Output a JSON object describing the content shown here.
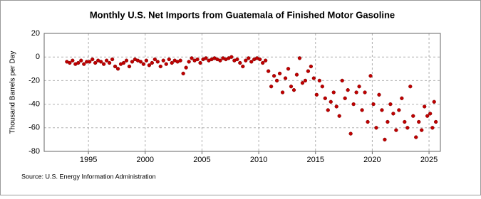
{
  "chart_data": {
    "type": "scatter",
    "title": "Monthly U.S. Net Imports from Guatemala of Finished Motor Gasoline",
    "y_label": "Thousand Barrels per Day",
    "source": "Source: U.S. Energy Information Administration",
    "series": [
      {
        "name": "Net Imports",
        "color": "#c00000",
        "x": [
          1993.1,
          1993.35,
          1993.6,
          1993.85,
          1994.1,
          1994.35,
          1994.6,
          1994.85,
          1995.1,
          1995.35,
          1995.6,
          1995.85,
          1996.1,
          1996.35,
          1996.6,
          1996.85,
          1997.1,
          1997.35,
          1997.6,
          1997.85,
          1998.1,
          1998.35,
          1998.6,
          1998.85,
          1999.1,
          1999.35,
          1999.6,
          1999.85,
          2000.1,
          2000.35,
          2000.6,
          2000.85,
          2001.1,
          2001.35,
          2001.6,
          2001.85,
          2002.1,
          2002.35,
          2002.6,
          2002.85,
          2003.1,
          2003.35,
          2003.6,
          2003.85,
          2004.1,
          2004.35,
          2004.6,
          2004.85,
          2005.1,
          2005.35,
          2005.6,
          2005.85,
          2006.1,
          2006.35,
          2006.6,
          2006.85,
          2007.1,
          2007.35,
          2007.6,
          2007.85,
          2008.1,
          2008.35,
          2008.6,
          2008.85,
          2009.1,
          2009.35,
          2009.6,
          2009.85,
          2010.1,
          2010.35,
          2010.6,
          2010.85,
          2011.1,
          2011.35,
          2011.6,
          2011.85,
          2012.1,
          2012.35,
          2012.6,
          2012.85,
          2013.1,
          2013.35,
          2013.6,
          2013.85,
          2014.1,
          2014.35,
          2014.6,
          2014.85,
          2015.1,
          2015.35,
          2015.6,
          2015.85,
          2016.1,
          2016.35,
          2016.6,
          2016.85,
          2017.1,
          2017.35,
          2017.6,
          2017.85,
          2018.1,
          2018.35,
          2018.6,
          2018.85,
          2019.1,
          2019.35,
          2019.6,
          2019.85,
          2020.1,
          2020.35,
          2020.6,
          2020.85,
          2021.1,
          2021.35,
          2021.6,
          2021.85,
          2022.1,
          2022.35,
          2022.6,
          2022.85,
          2023.1,
          2023.35,
          2023.6,
          2023.85,
          2024.1,
          2024.35,
          2024.6,
          2024.85,
          2025.1,
          2025.3,
          2025.45,
          2025.6
        ],
        "values": [
          -4,
          -5,
          -3,
          -6,
          -5,
          -3,
          -6,
          -4,
          -4,
          -2,
          -5,
          -3,
          -4,
          -6,
          -3,
          -5,
          -2,
          -8,
          -10,
          -6,
          -5,
          -3,
          -8,
          -4,
          -2,
          -3,
          -4,
          -6,
          -3,
          -7,
          -5,
          -2,
          -4,
          -8,
          -3,
          -6,
          -2,
          -5,
          -3,
          -4,
          -3,
          -14,
          -9,
          -4,
          -1,
          -3,
          -2,
          -5,
          -2,
          -1,
          -3,
          -2,
          -1,
          -2,
          -3,
          -1,
          -2,
          -1,
          0,
          -3,
          -2,
          -5,
          -8,
          -3,
          -1,
          -4,
          -2,
          -1,
          -2,
          -5,
          -3,
          -12,
          -25,
          -16,
          -20,
          -14,
          -30,
          -18,
          -10,
          -25,
          -28,
          -15,
          -1,
          -22,
          -20,
          -12,
          -8,
          -18,
          -32,
          -20,
          -25,
          -35,
          -45,
          -38,
          -30,
          -42,
          -50,
          -20,
          -35,
          -28,
          -65,
          -40,
          -30,
          -25,
          -45,
          -30,
          -55,
          -16,
          -40,
          -60,
          -32,
          -45,
          -70,
          -55,
          -40,
          -48,
          -62,
          -45,
          -35,
          -55,
          -60,
          -25,
          -50,
          -68,
          -55,
          -62,
          -42,
          -50,
          -48,
          -60,
          -38,
          -55
        ]
      }
    ],
    "xlim": [
      1991.1,
      2026
    ],
    "xticks": [
      1995,
      2000,
      2005,
      2010,
      2015,
      2020,
      2025
    ],
    "ylim": [
      -80,
      20
    ],
    "yticks": [
      20,
      0,
      -20,
      -40,
      -60,
      -80
    ],
    "grid": true
  }
}
